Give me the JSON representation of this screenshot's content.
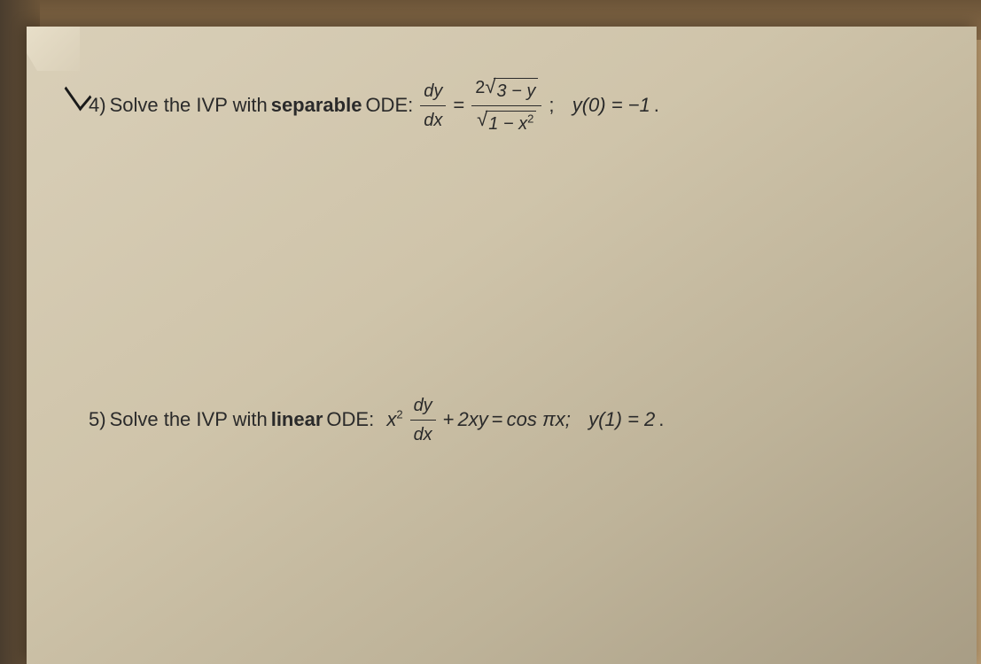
{
  "page": {
    "background_wood_color": "#8a6d4a",
    "paper_color_light": "#d9cfb8",
    "paper_color_dark": "#a89d85",
    "text_color": "#2a2a2a",
    "font_family": "Arial",
    "body_fontsize": 22
  },
  "problem4": {
    "number": "4)",
    "prefix": "Solve the IVP with ",
    "bold_word": "separable",
    "suffix": " ODE:",
    "lhs_num": "dy",
    "lhs_den": "dx",
    "equals": "=",
    "rhs_num_coef": "2",
    "rhs_num_sqrt_arg": "3 − y",
    "rhs_den_sqrt_arg": "1 − x",
    "rhs_den_sqrt_exp": "2",
    "sep": ";",
    "condition": "y(0) = −1",
    "period": "."
  },
  "problem5": {
    "number": "5)",
    "prefix": "Solve the IVP with ",
    "bold_word": "linear",
    "suffix": " ODE:",
    "term1_base": "x",
    "term1_exp": "2",
    "frac_num": "dy",
    "frac_den": "dx",
    "plus": "+",
    "term2": "2xy",
    "equals": "=",
    "rhs": "cos πx;",
    "condition": "y(1) = 2",
    "period": "."
  }
}
